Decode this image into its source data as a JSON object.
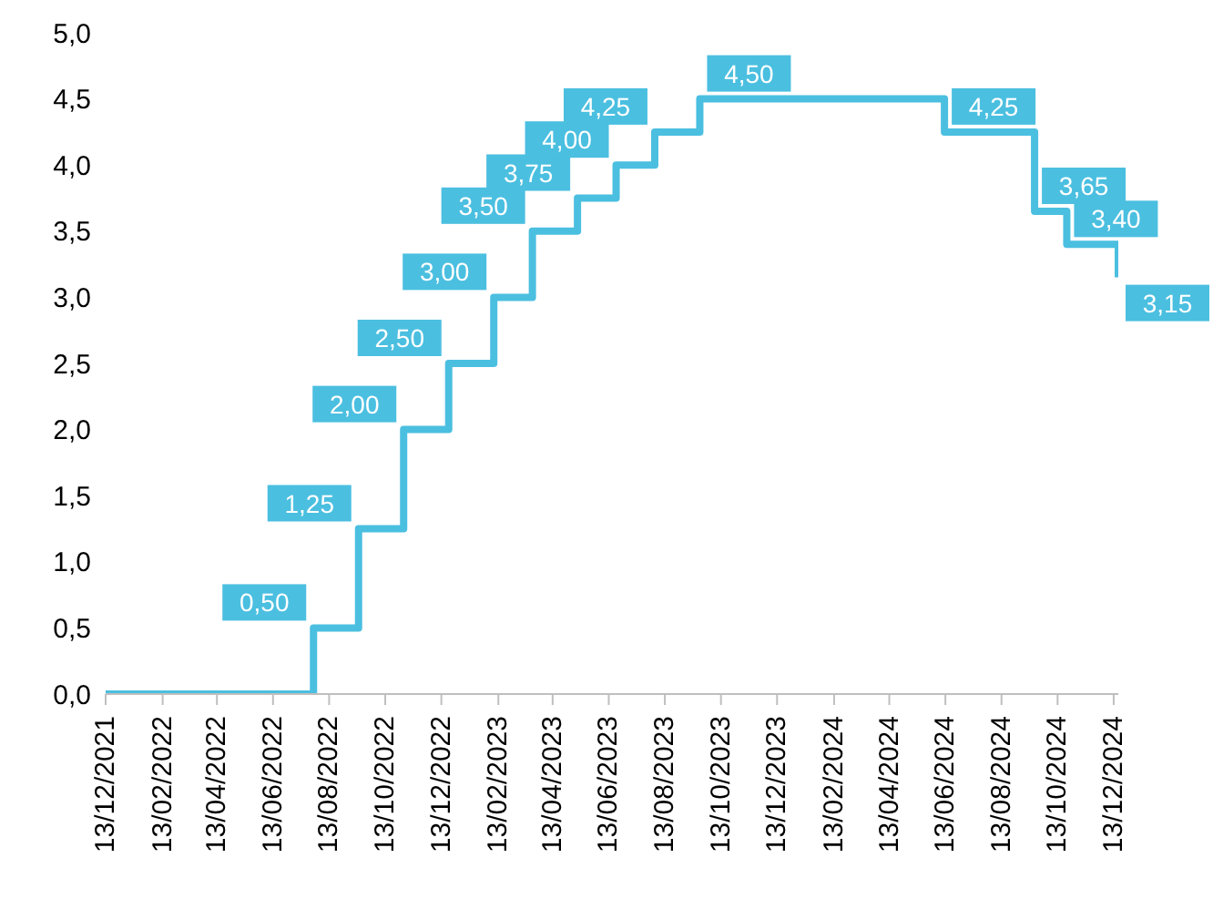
{
  "chart_data": {
    "type": "step",
    "x": [
      "2021-12-13",
      "2022-07-27",
      "2022-09-14",
      "2022-11-02",
      "2022-12-21",
      "2023-02-08",
      "2023-03-22",
      "2023-05-10",
      "2023-06-21",
      "2023-08-02",
      "2023-09-20",
      "2024-06-12",
      "2024-09-18",
      "2024-10-23",
      "2024-12-18"
    ],
    "series": [
      {
        "color": "#4bbfe0",
        "values": [
          0,
          0.5,
          1.25,
          2.0,
          2.5,
          3.0,
          3.5,
          3.75,
          4.0,
          4.25,
          4.5,
          4.25,
          3.65,
          3.4,
          3.15
        ],
        "value_labels": [
          null,
          "0,50",
          "1,25",
          "2,00",
          "2,50",
          "3,00",
          "3,50",
          "3,75",
          "4,00",
          "4,25",
          "4,50",
          "4,25",
          "3,65",
          "3,40",
          "3,15"
        ]
      }
    ],
    "xlim": [
      "2021-12-13",
      "2024-12-18"
    ],
    "xticks": [
      {
        "value": "2021-12-13",
        "label": "13/12/2021"
      },
      {
        "value": "2022-02-13",
        "label": "13/02/2022"
      },
      {
        "value": "2022-04-13",
        "label": "13/04/2022"
      },
      {
        "value": "2022-06-13",
        "label": "13/06/2022"
      },
      {
        "value": "2022-08-13",
        "label": "13/08/2022"
      },
      {
        "value": "2022-10-13",
        "label": "13/10/2022"
      },
      {
        "value": "2022-12-13",
        "label": "13/12/2022"
      },
      {
        "value": "2023-02-13",
        "label": "13/02/2023"
      },
      {
        "value": "2023-04-13",
        "label": "13/04/2023"
      },
      {
        "value": "2023-06-13",
        "label": "13/06/2023"
      },
      {
        "value": "2023-08-13",
        "label": "13/08/2023"
      },
      {
        "value": "2023-10-13",
        "label": "13/10/2023"
      },
      {
        "value": "2023-12-13",
        "label": "13/12/2023"
      },
      {
        "value": "2024-02-13",
        "label": "13/02/2024"
      },
      {
        "value": "2024-04-13",
        "label": "13/04/2024"
      },
      {
        "value": "2024-06-13",
        "label": "13/06/2024"
      },
      {
        "value": "2024-08-13",
        "label": "13/08/2024"
      },
      {
        "value": "2024-10-13",
        "label": "13/10/2024"
      },
      {
        "value": "2024-12-13",
        "label": "13/12/2024"
      }
    ],
    "ylim": [
      0,
      5
    ],
    "yticks": [
      {
        "value": 0,
        "label": "0,0"
      },
      {
        "value": 0.5,
        "label": "0,5"
      },
      {
        "value": 1,
        "label": "1,0"
      },
      {
        "value": 1.5,
        "label": "1,5"
      },
      {
        "value": 2,
        "label": "2,0"
      },
      {
        "value": 2.5,
        "label": "2,5"
      },
      {
        "value": 3,
        "label": "3,0"
      },
      {
        "value": 3.5,
        "label": "3,5"
      },
      {
        "value": 4,
        "label": "4,0"
      },
      {
        "value": 4.5,
        "label": "4,5"
      },
      {
        "value": 5,
        "label": "5,0"
      }
    ],
    "grid": false,
    "legend": false
  }
}
